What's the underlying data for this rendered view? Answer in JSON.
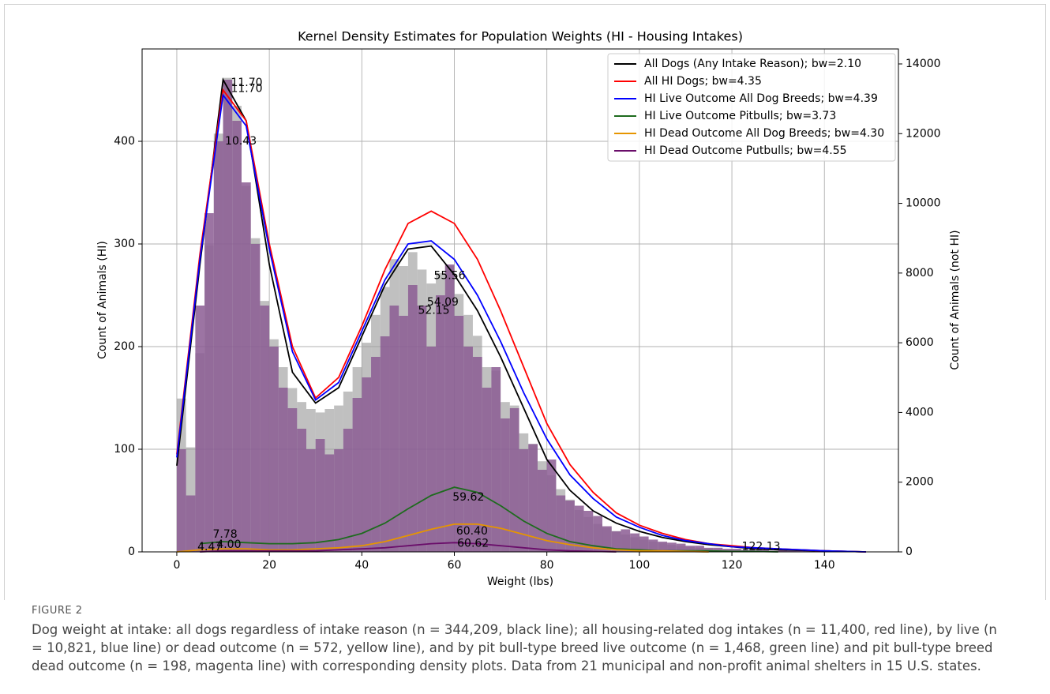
{
  "chart_data": {
    "type": "histogram-kde",
    "title": "Kernel Density Estimates for Population Weights (HI - Housing Intakes)",
    "xlabel": "Weight (lbs)",
    "ylabel": "Count of Animals (HI)",
    "y2label": "Count of Animals (not HI)",
    "xlim": [
      -7.5,
      156
    ],
    "ylim": [
      0,
      490
    ],
    "y2lim": [
      0,
      14430
    ],
    "xticks": [
      0,
      20,
      40,
      60,
      80,
      100,
      120,
      140
    ],
    "yticks": [
      0,
      100,
      200,
      300,
      400
    ],
    "y2ticks": [
      0,
      2000,
      4000,
      6000,
      8000,
      10000,
      12000,
      14000
    ],
    "grid": true,
    "legend": "upper right",
    "bins": [
      0,
      2,
      4,
      6,
      8,
      10,
      12,
      14,
      16,
      18,
      20,
      22,
      24,
      26,
      28,
      30,
      32,
      34,
      36,
      38,
      40,
      42,
      44,
      46,
      48,
      50,
      52,
      54,
      56,
      58,
      60,
      62,
      64,
      66,
      68,
      70,
      72,
      74,
      76,
      78,
      80,
      82,
      84,
      86,
      88,
      90,
      92,
      94,
      96,
      98,
      100,
      102,
      104,
      106,
      108,
      110,
      112,
      114,
      116,
      118,
      120,
      122,
      124,
      126,
      128,
      130,
      132,
      134,
      136,
      138,
      140,
      142,
      144,
      146,
      148,
      150
    ],
    "histograms": [
      {
        "color": "#9e9e9e",
        "axis": "y2",
        "values": [
          4400,
          3000,
          5700,
          8800,
          12000,
          13600,
          12800,
          10500,
          9000,
          7200,
          6100,
          5300,
          4700,
          4300,
          4100,
          4000,
          4100,
          4200,
          4600,
          5300,
          6000,
          6800,
          7600,
          8400,
          8200,
          8600,
          8100,
          7700,
          8000,
          8200,
          7400,
          6800,
          6200,
          5300,
          5200,
          4300,
          4200,
          3400,
          3100,
          2600,
          2200,
          1800,
          1500,
          1200,
          1000,
          800,
          700,
          600,
          500,
          420,
          350,
          300,
          250,
          200,
          170,
          140,
          120,
          100,
          80,
          70,
          60,
          50,
          40,
          35,
          30,
          25,
          20,
          15,
          12,
          10,
          8,
          6,
          4,
          2,
          1
        ]
      },
      {
        "color": "#8b5c93",
        "axis": "y",
        "values": [
          100,
          55,
          240,
          330,
          400,
          460,
          420,
          360,
          300,
          240,
          200,
          160,
          140,
          120,
          100,
          110,
          95,
          100,
          120,
          150,
          170,
          190,
          210,
          240,
          230,
          260,
          240,
          200,
          250,
          280,
          230,
          200,
          190,
          160,
          180,
          130,
          140,
          100,
          105,
          80,
          90,
          55,
          50,
          45,
          40,
          35,
          25,
          20,
          22,
          18,
          15,
          12,
          10,
          9,
          8,
          6,
          6,
          4,
          4,
          3,
          3,
          2,
          2,
          2,
          1,
          2,
          1,
          1,
          1,
          0,
          1,
          0,
          0,
          0,
          0
        ]
      }
    ],
    "x": [
      0,
      5,
      10,
      15,
      20,
      25,
      30,
      35,
      40,
      45,
      50,
      55,
      60,
      65,
      70,
      75,
      80,
      85,
      90,
      95,
      100,
      105,
      110,
      115,
      120,
      125,
      130,
      135,
      140,
      145,
      149
    ],
    "series": [
      {
        "name": "All Dogs (Any Intake Reason); bw=2.10",
        "color": "#000000",
        "values": [
          84,
          280,
          460,
          420,
          280,
          175,
          145,
          160,
          210,
          260,
          295,
          298,
          270,
          235,
          190,
          140,
          90,
          60,
          40,
          28,
          20,
          14,
          10,
          7,
          5,
          3,
          2,
          1.5,
          1,
          0.5,
          0
        ]
      },
      {
        "name": "All HI Dogs; bw=4.35",
        "color": "#ff0000",
        "values": [
          95,
          290,
          450,
          420,
          300,
          200,
          150,
          170,
          220,
          275,
          320,
          332,
          320,
          285,
          235,
          180,
          125,
          85,
          58,
          38,
          26,
          18,
          12,
          8,
          6,
          4,
          3,
          2,
          1,
          0.5,
          0
        ]
      },
      {
        "name": "HI Live Outcome All Dog Breeds; bw=4.39",
        "color": "#0000ff",
        "values": [
          92,
          285,
          445,
          415,
          295,
          195,
          148,
          165,
          215,
          265,
          300,
          303,
          285,
          250,
          205,
          155,
          110,
          75,
          52,
          34,
          24,
          16,
          11,
          8,
          5,
          4,
          3,
          2,
          1,
          0.5,
          0
        ]
      },
      {
        "name": "HI Live Outcome Pitbulls; bw=3.73",
        "color": "#1e6b1e",
        "values": [
          null,
          8,
          10,
          9,
          8,
          8,
          9,
          12,
          18,
          28,
          42,
          55,
          63,
          58,
          45,
          30,
          18,
          10,
          6,
          3,
          2,
          1,
          1,
          1,
          0.5,
          0.5,
          0,
          null,
          null,
          null,
          null
        ]
      },
      {
        "name": "HI Dead Outcome All Dog Breeds; bw=4.30",
        "color": "#e69500",
        "values": [
          0,
          2,
          3,
          3,
          2,
          2,
          3,
          4,
          6,
          10,
          16,
          22,
          27,
          27,
          23,
          17,
          11,
          7,
          4,
          2,
          1,
          1,
          0.5,
          0,
          null,
          null,
          null,
          null,
          null,
          null,
          null
        ]
      },
      {
        "name": "HI Dead Outcome Putbulls; bw=4.55",
        "color": "#6a0d6a",
        "values": [
          null,
          0,
          1,
          1,
          1,
          1,
          1,
          2,
          3,
          4,
          6,
          8,
          9,
          8,
          6,
          4,
          2,
          1,
          0.5,
          0,
          null,
          null,
          null,
          null,
          null,
          null,
          null,
          null,
          null,
          null,
          null
        ]
      }
    ],
    "annotations": [
      {
        "text": "11.70",
        "x": 11.7,
        "y": 457,
        "color": "#ff0000"
      },
      {
        "text": "11.70",
        "x": 11.7,
        "y": 451,
        "color": "#0000ff"
      },
      {
        "text": "10.43",
        "x": 10.43,
        "y": 400,
        "color": "#000000"
      },
      {
        "text": "55.56",
        "x": 55.56,
        "y": 269,
        "color": "#ff0000"
      },
      {
        "text": "54.09",
        "x": 54.09,
        "y": 243,
        "color": "#0000ff"
      },
      {
        "text": "52.15",
        "x": 52.15,
        "y": 235,
        "color": "#000000"
      },
      {
        "text": "59.62",
        "x": 59.62,
        "y": 53,
        "color": "#1e6b1e"
      },
      {
        "text": "60.40",
        "x": 60.4,
        "y": 20,
        "color": "#e69500"
      },
      {
        "text": "60.62",
        "x": 60.62,
        "y": 8,
        "color": "#6a0d6a"
      },
      {
        "text": "7.78",
        "x": 7.78,
        "y": 17,
        "color": "#1e6b1e"
      },
      {
        "text": "4.00",
        "x": 8.6,
        "y": 7,
        "color": "#e69500"
      },
      {
        "text": "4.47",
        "x": 4.47,
        "y": 4.6,
        "color": "#6a0d6a"
      },
      {
        "text": "122.13",
        "x": 122.13,
        "y": 5,
        "color": "#1e6b1e"
      }
    ]
  },
  "caption": {
    "label": "FIGURE 2",
    "text": "Dog weight at intake: all dogs regardless of intake reason (n = 344,209, black line); all housing-related dog intakes (n = 11,400, red line), by live (n = 10,821, blue line) or dead outcome (n = 572, yellow line), and by pit bull-type breed live outcome (n = 1,468, green line) and pit bull-type breed dead outcome (n = 198, magenta line) with corresponding density plots. Data from 21 municipal and non-profit animal shelters in 15 U.S. states."
  }
}
